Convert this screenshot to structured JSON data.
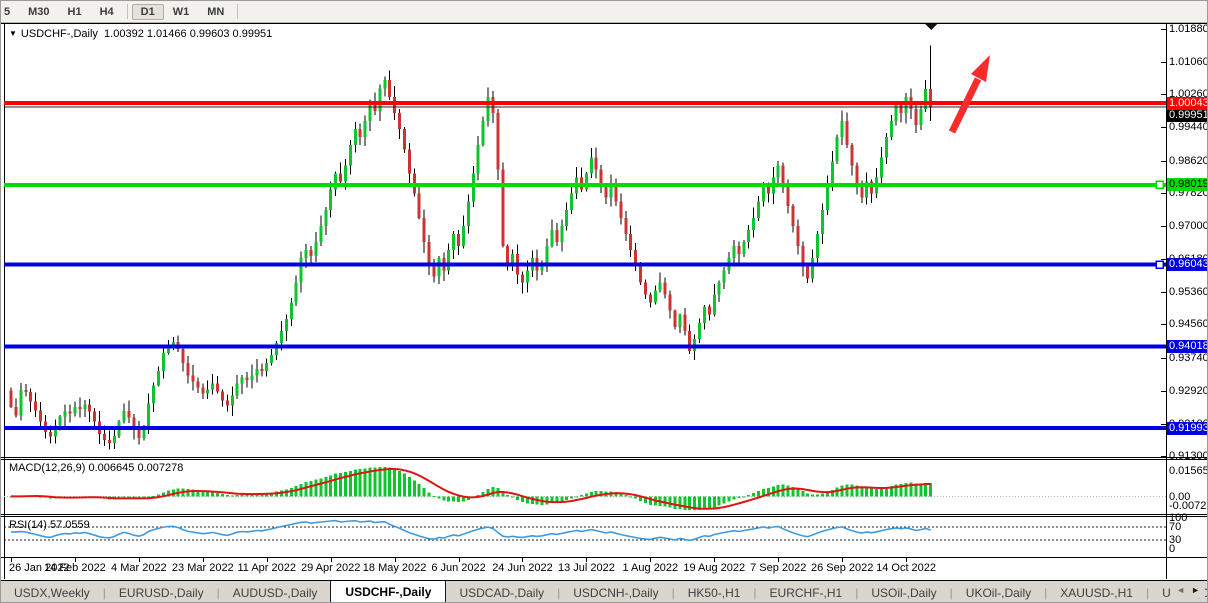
{
  "toolbar": {
    "timeframes": [
      {
        "label": "5",
        "active": false
      },
      {
        "label": "M30",
        "active": false
      },
      {
        "label": "H1",
        "active": false
      },
      {
        "label": "H4",
        "active": false
      },
      {
        "label": "D1",
        "active": true
      },
      {
        "label": "W1",
        "active": false
      },
      {
        "label": "MN",
        "active": false
      }
    ]
  },
  "chart": {
    "title": "USDCHF-,Daily",
    "open": "1.00392",
    "high": "1.01466",
    "low": "0.99603",
    "close": "0.99951"
  },
  "price_axis": {
    "top": 1.0188,
    "bottom": 0.913,
    "ticks": [
      "1.01880",
      "1.01060",
      "1.00260",
      "0.99440",
      "0.98620",
      "0.97820",
      "0.97000",
      "0.96180",
      "0.95360",
      "0.94560",
      "0.93740",
      "0.92920",
      "0.92100",
      "0.91300"
    ]
  },
  "hlines": [
    {
      "price": 1.00043,
      "label": "1.00043",
      "color": "#fe0000",
      "text_color": "#ffffff",
      "handle": false
    },
    {
      "price": 0.98019,
      "label": "0.98019",
      "color": "#00dc00",
      "text_color": "#000000",
      "handle": true
    },
    {
      "price": 0.96043,
      "label": "0.96043",
      "color": "#0000e2",
      "text_color": "#ffffff",
      "handle": true
    },
    {
      "price": 0.94018,
      "label": "0.94018",
      "color": "#0000e2",
      "text_color": "#ffffff",
      "handle": false
    },
    {
      "price": 0.91993,
      "label": "0.91993",
      "color": "#0000e2",
      "text_color": "#ffffff",
      "handle": false
    }
  ],
  "current_price": {
    "price": 0.99951,
    "label": "0.99951",
    "bg": "#000000",
    "text_color": "#ffffff"
  },
  "chart_data": {
    "type": "candlestick",
    "symbol": "USDCHF-",
    "timeframe": "Daily",
    "y_range": [
      0.913,
      1.0188
    ],
    "bull_color": "#0fc42f",
    "bear_color": "#cc3434",
    "wick_color": "#000000",
    "closes": [
      0.9252,
      0.923,
      0.9294,
      0.9288,
      0.9265,
      0.9243,
      0.9216,
      0.919,
      0.9178,
      0.9205,
      0.9228,
      0.924,
      0.9235,
      0.9252,
      0.9246,
      0.9258,
      0.924,
      0.9215,
      0.9185,
      0.917,
      0.9162,
      0.918,
      0.9215,
      0.9242,
      0.9225,
      0.9195,
      0.9175,
      0.92,
      0.926,
      0.9305,
      0.934,
      0.9385,
      0.9405,
      0.9412,
      0.9395,
      0.936,
      0.933,
      0.9315,
      0.93,
      0.9285,
      0.9295,
      0.931,
      0.929,
      0.9268,
      0.9255,
      0.928,
      0.931,
      0.9325,
      0.9318,
      0.933,
      0.9345,
      0.934,
      0.936,
      0.938,
      0.941,
      0.944,
      0.947,
      0.951,
      0.956,
      0.962,
      0.964,
      0.9625,
      0.966,
      0.97,
      0.974,
      0.979,
      0.983,
      0.981,
      0.985,
      0.99,
      0.994,
      0.992,
      0.996,
      1.001,
      0.9985,
      1.004,
      1.0062,
      1.002,
      0.998,
      0.994,
      0.989,
      0.983,
      0.978,
      0.972,
      0.966,
      0.96,
      0.9575,
      0.962,
      0.959,
      0.964,
      0.968,
      0.965,
      0.97,
      0.976,
      0.983,
      0.99,
      0.996,
      1.002,
      0.998,
      0.984,
      0.965,
      0.96,
      0.963,
      0.958,
      0.956,
      0.959,
      0.962,
      0.959,
      0.961,
      0.965,
      0.969,
      0.966,
      0.97,
      0.974,
      0.978,
      0.982,
      0.979,
      0.983,
      0.987,
      0.984,
      0.98,
      0.977,
      0.98,
      0.976,
      0.972,
      0.968,
      0.964,
      0.96,
      0.956,
      0.953,
      0.951,
      0.954,
      0.956,
      0.953,
      0.949,
      0.945,
      0.948,
      0.944,
      0.939,
      0.942,
      0.946,
      0.95,
      0.948,
      0.953,
      0.956,
      0.959,
      0.962,
      0.965,
      0.963,
      0.966,
      0.969,
      0.972,
      0.976,
      0.98,
      0.978,
      0.982,
      0.985,
      0.98,
      0.975,
      0.97,
      0.965,
      0.96,
      0.957,
      0.962,
      0.968,
      0.974,
      0.98,
      0.986,
      0.992,
      0.996,
      0.99,
      0.985,
      0.98,
      0.977,
      0.981,
      0.978,
      0.982,
      0.987,
      0.992,
      0.996,
      1.0,
      0.998,
      1.002,
      0.999,
      0.995,
      0.999,
      1.00392,
      0.99951
    ],
    "last_candle": {
      "open": 1.00392,
      "high": 1.01466,
      "low": 0.99603,
      "close": 0.99951
    },
    "date_ticks": [
      {
        "i": 0,
        "label": "26 Jan 2022"
      },
      {
        "i": 13,
        "label": "14 Feb 2022"
      },
      {
        "i": 26,
        "label": "4 Mar 2022"
      },
      {
        "i": 39,
        "label": "23 Mar 2022"
      },
      {
        "i": 52,
        "label": "11 Apr 2022"
      },
      {
        "i": 65,
        "label": "29 Apr 2022"
      },
      {
        "i": 78,
        "label": "18 May 2022"
      },
      {
        "i": 91,
        "label": "6 Jun 2022"
      },
      {
        "i": 104,
        "label": "24 Jun 2022"
      },
      {
        "i": 117,
        "label": "13 Jul 2022"
      },
      {
        "i": 130,
        "label": "1 Aug 2022"
      },
      {
        "i": 143,
        "label": "19 Aug 2022"
      },
      {
        "i": 156,
        "label": "7 Sep 2022"
      },
      {
        "i": 169,
        "label": "26 Sep 2022"
      },
      {
        "i": 182,
        "label": "14 Oct 2022"
      }
    ]
  },
  "macd": {
    "label": "MACD(12,26,9)",
    "value_main": "0.006645",
    "value_signal": "0.007278",
    "fast": 12,
    "slow": 26,
    "signal": 9,
    "axis_max": "0.015654",
    "axis_zero": "0.00",
    "axis_min": "-0.007259",
    "histogram_color": "#0fc42f",
    "signal_color": "#e11414"
  },
  "rsi": {
    "label": "RSI(14)",
    "value": "57.0559",
    "period": 14,
    "levels": [
      "100",
      "70",
      "30",
      "0"
    ],
    "overbought": 70,
    "oversold": 30,
    "line_color": "#3f9ae0"
  },
  "annotations": {
    "arrow": {
      "color": "#fb2b2b"
    },
    "top_marker": {
      "color": "#111111"
    }
  },
  "tabs": {
    "active_index": 3,
    "items": [
      "USDX,Weekly",
      "EURUSD-,Daily",
      "AUDUSD-,Daily",
      "USDCHF-,Daily",
      "USDCAD-,Daily",
      "USDCNH-,Daily",
      "HK50-,H1",
      "EURCHF-,H1",
      "USOil-,Daily",
      "UKOil-,Daily",
      "XAUUSD-,H1",
      "UKOil-,Daily"
    ]
  }
}
